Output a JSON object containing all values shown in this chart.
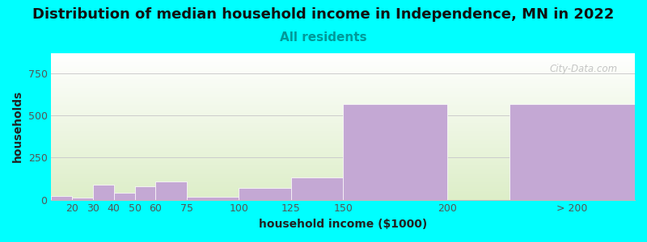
{
  "title": "Distribution of median household income in Independence, MN in 2022",
  "subtitle": "All residents",
  "xlabel": "household income ($1000)",
  "ylabel": "households",
  "background_color": "#00FFFF",
  "plot_bg_top": "#FFFFFF",
  "plot_bg_bottom": "#DDEEC8",
  "bar_color": "#C4A8D4",
  "bar_edge_color": "#FFFFFF",
  "categories": [
    "20",
    "30",
    "40",
    "50",
    "60",
    "75",
    "100",
    "125",
    "150",
    "200",
    "> 200"
  ],
  "values": [
    20,
    10,
    90,
    40,
    80,
    110,
    15,
    70,
    130,
    570,
    570
  ],
  "bar_lefts": [
    10,
    20,
    30,
    40,
    50,
    60,
    75,
    100,
    125,
    150,
    230
  ],
  "bar_widths": [
    10,
    10,
    10,
    10,
    10,
    15,
    25,
    25,
    25,
    50,
    60
  ],
  "xlim": [
    10,
    290
  ],
  "ylim": [
    0,
    870
  ],
  "yticks": [
    0,
    250,
    500,
    750
  ],
  "xtick_positions": [
    20,
    30,
    40,
    50,
    60,
    75,
    100,
    125,
    150,
    200,
    260
  ],
  "xtick_labels": [
    "20",
    "30",
    "40",
    "50",
    "60",
    "75",
    "100",
    "125",
    "150",
    "200",
    "> 200"
  ],
  "watermark": "City-Data.com",
  "title_fontsize": 13,
  "subtitle_fontsize": 11,
  "axis_label_fontsize": 10,
  "tick_fontsize": 9
}
